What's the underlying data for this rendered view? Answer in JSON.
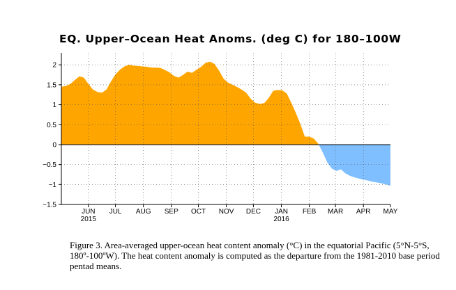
{
  "chart_data": {
    "type": "area",
    "title": "EQ. Upper–Ocean Heat Anoms. (deg C) for 180–100W",
    "xlabel": "",
    "ylabel": "",
    "ylim": [
      -1.5,
      2.3
    ],
    "yticks": [
      2,
      1.5,
      1,
      0.5,
      0,
      -0.5,
      -1,
      -1.5
    ],
    "ytick_labels": [
      "2",
      "1.5",
      "1",
      "0.5",
      "0",
      "−0.5",
      "−1",
      "−1.5"
    ],
    "xlim": [
      "2015-05-02",
      "2016-05-01"
    ],
    "xticks": [
      {
        "date": "2015-06-01",
        "label": "JUN",
        "sublabel": "2015"
      },
      {
        "date": "2015-07-01",
        "label": "JUL",
        "sublabel": ""
      },
      {
        "date": "2015-08-01",
        "label": "AUG",
        "sublabel": ""
      },
      {
        "date": "2015-09-01",
        "label": "SEP",
        "sublabel": ""
      },
      {
        "date": "2015-10-01",
        "label": "OCT",
        "sublabel": ""
      },
      {
        "date": "2015-11-01",
        "label": "NOV",
        "sublabel": ""
      },
      {
        "date": "2015-12-01",
        "label": "DEC",
        "sublabel": ""
      },
      {
        "date": "2016-01-01",
        "label": "JAN",
        "sublabel": "2016"
      },
      {
        "date": "2016-02-01",
        "label": "FEB",
        "sublabel": ""
      },
      {
        "date": "2016-03-01",
        "label": "MAR",
        "sublabel": ""
      },
      {
        "date": "2016-04-01",
        "label": "APR",
        "sublabel": ""
      },
      {
        "date": "2016-05-01",
        "label": "MAY",
        "sublabel": ""
      }
    ],
    "grid": true,
    "positive_color": "#ffa500",
    "negative_color": "#7fbfff",
    "x": [
      "2015-05-02",
      "2015-05-07",
      "2015-05-12",
      "2015-05-17",
      "2015-05-22",
      "2015-05-27",
      "2015-06-01",
      "2015-06-06",
      "2015-06-11",
      "2015-06-16",
      "2015-06-21",
      "2015-06-26",
      "2015-07-01",
      "2015-07-06",
      "2015-07-11",
      "2015-07-16",
      "2015-07-21",
      "2015-07-26",
      "2015-07-31",
      "2015-08-05",
      "2015-08-10",
      "2015-08-15",
      "2015-08-20",
      "2015-08-25",
      "2015-08-30",
      "2015-09-04",
      "2015-09-09",
      "2015-09-14",
      "2015-09-19",
      "2015-09-24",
      "2015-09-29",
      "2015-10-04",
      "2015-10-09",
      "2015-10-14",
      "2015-10-19",
      "2015-10-24",
      "2015-10-29",
      "2015-11-03",
      "2015-11-08",
      "2015-11-13",
      "2015-11-18",
      "2015-11-23",
      "2015-11-28",
      "2015-12-03",
      "2015-12-08",
      "2015-12-13",
      "2015-12-18",
      "2015-12-23",
      "2015-12-28",
      "2016-01-02",
      "2016-01-07",
      "2016-01-12",
      "2016-01-17",
      "2016-01-22",
      "2016-01-27",
      "2016-02-01",
      "2016-02-06",
      "2016-02-11",
      "2016-02-16",
      "2016-02-21",
      "2016-02-26",
      "2016-03-02",
      "2016-03-07",
      "2016-03-12",
      "2016-03-17",
      "2016-03-22",
      "2016-03-27",
      "2016-04-01",
      "2016-04-06",
      "2016-04-11",
      "2016-04-16",
      "2016-04-21",
      "2016-04-26",
      "2016-05-01"
    ],
    "values": [
      1.45,
      1.47,
      1.52,
      1.62,
      1.71,
      1.68,
      1.52,
      1.38,
      1.32,
      1.3,
      1.38,
      1.58,
      1.76,
      1.88,
      1.96,
      2.0,
      1.98,
      1.97,
      1.96,
      1.95,
      1.93,
      1.93,
      1.92,
      1.87,
      1.81,
      1.72,
      1.68,
      1.75,
      1.83,
      1.8,
      1.88,
      1.95,
      2.05,
      2.08,
      2.02,
      1.85,
      1.65,
      1.55,
      1.5,
      1.44,
      1.38,
      1.3,
      1.15,
      1.05,
      1.02,
      1.04,
      1.17,
      1.35,
      1.37,
      1.36,
      1.28,
      1.05,
      0.8,
      0.52,
      0.2,
      0.2,
      0.15,
      0.02,
      -0.2,
      -0.45,
      -0.6,
      -0.66,
      -0.62,
      -0.72,
      -0.78,
      -0.82,
      -0.85,
      -0.88,
      -0.9,
      -0.93,
      -0.95,
      -0.97,
      -1.0,
      -1.03
    ]
  },
  "caption": "Figure 3. Area-averaged upper-ocean heat content anomaly (°C) in the equatorial Pacific (5°N-5°S, 180º-100ºW). The heat content anomaly is computed as the departure from the 1981-2010 base period pentad means."
}
